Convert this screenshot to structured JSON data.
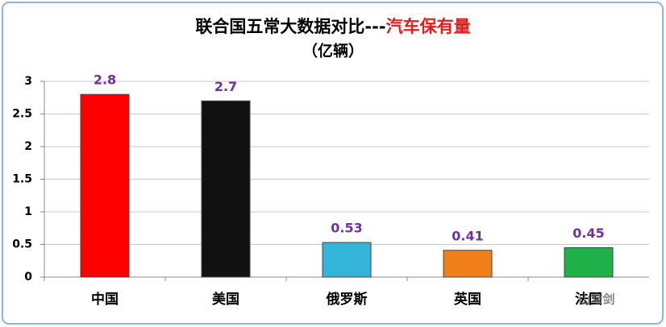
{
  "chart_data": {
    "type": "bar",
    "title": "联合国五常大数据对比---",
    "title_highlight": "汽车保有量",
    "subtitle": "（亿辆）",
    "categories": [
      "中国",
      "美国",
      "俄罗斯",
      "英国",
      "法国"
    ],
    "values": [
      2.8,
      2.7,
      0.53,
      0.41,
      0.45
    ],
    "colors": [
      "#ff0000",
      "#111111",
      "#33b4d8",
      "#f07f1a",
      "#1fb04a"
    ],
    "label_color": "#7030a0",
    "highlight_color": "#e02020",
    "ylim": [
      0,
      3
    ],
    "yticks": [
      0,
      0.5,
      1,
      1.5,
      2,
      2.5,
      3
    ],
    "grid": true,
    "watermark": "山穹剑"
  }
}
